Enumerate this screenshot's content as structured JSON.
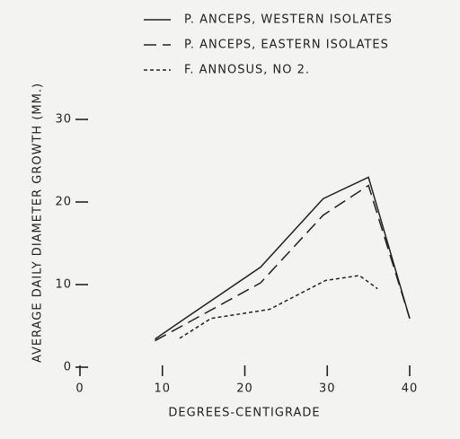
{
  "chart_data": {
    "type": "line",
    "series": [
      {
        "name": "P. ANCEPS, WESTERN ISOLATES",
        "color": "#222222",
        "dash": "solid",
        "x": [
          9.1,
          12.6,
          21.9,
          29.5,
          35,
          40
        ],
        "values": [
          3.4,
          5.8,
          12.1,
          20.4,
          23,
          5.9
        ]
      },
      {
        "name": "P. ANCEPS, EASTERN ISOLATES",
        "color": "#222222",
        "dash": "dashed",
        "x": [
          9.1,
          21.9,
          29.5,
          35,
          40
        ],
        "values": [
          3.2,
          10.2,
          18.4,
          22,
          5.9
        ]
      },
      {
        "name": "F. ANNOSUS, NO 2.",
        "color": "#222222",
        "dash": "dotted",
        "x": [
          12.1,
          15.9,
          23,
          29.8,
          33.9,
          36.1
        ],
        "values": [
          3.5,
          5.9,
          7,
          10.5,
          11.1,
          9.5
        ]
      }
    ],
    "x_label": "DEGREES-CENTIGRADE",
    "y_label": "AVERAGE DAILY DIAMETER GROWTH (MM.)",
    "xlim": [
      0,
      40
    ],
    "xticks": [
      0,
      10,
      20,
      30,
      40
    ],
    "ylim": [
      0,
      30
    ],
    "yticks": [
      0,
      10,
      20,
      30
    ],
    "grid": false
  }
}
